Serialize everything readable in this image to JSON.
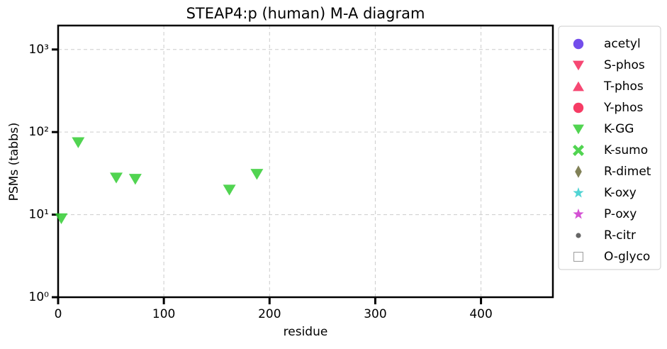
{
  "chart_data": {
    "type": "scatter",
    "title": "STEAP4:p (human) M-A diagram",
    "xlabel": "residue",
    "ylabel": "PSMs (tabbs)",
    "xlim": [
      0,
      468
    ],
    "ylim": [
      1,
      1950
    ],
    "log_y": true,
    "grid": true,
    "xticks": [
      0,
      100,
      200,
      300,
      400
    ],
    "yticks": [
      {
        "value": 1,
        "label": "10⁰"
      },
      {
        "value": 10,
        "label": "10¹"
      },
      {
        "value": 100,
        "label": "10²"
      },
      {
        "value": 1000,
        "label": "10³"
      }
    ],
    "legend": "outside-right",
    "series": [
      {
        "name": "acetyl",
        "color": "#5b2ee8",
        "marker": "circle",
        "x": [],
        "values": []
      },
      {
        "name": "S-phos",
        "color": "#f5285a",
        "marker": "triangle-down",
        "x": [],
        "values": []
      },
      {
        "name": "T-phos",
        "color": "#f5285a",
        "marker": "triangle-up",
        "x": [],
        "values": []
      },
      {
        "name": "Y-phos",
        "color": "#f51a4a",
        "marker": "circle",
        "x": [],
        "values": []
      },
      {
        "name": "K-GG",
        "color": "#33cc33",
        "marker": "triangle-down",
        "x": [
          3,
          19,
          55,
          73,
          162,
          188
        ],
        "values": [
          9,
          75,
          28,
          27,
          20,
          31
        ]
      },
      {
        "name": "K-sumo",
        "color": "#33cc33",
        "marker": "x",
        "x": [],
        "values": []
      },
      {
        "name": "R-dimet",
        "color": "#6b6b3a",
        "marker": "diamond",
        "x": [],
        "values": []
      },
      {
        "name": "K-oxy",
        "color": "#33cccc",
        "marker": "star",
        "x": [],
        "values": []
      },
      {
        "name": "P-oxy",
        "color": "#cc33cc",
        "marker": "star",
        "x": [],
        "values": []
      },
      {
        "name": "R-citr",
        "color": "#666666",
        "marker": "small-circle",
        "x": [],
        "values": []
      },
      {
        "name": "O-glyco",
        "color": "#999999",
        "marker": "hollow-square",
        "x": [],
        "values": []
      }
    ]
  }
}
